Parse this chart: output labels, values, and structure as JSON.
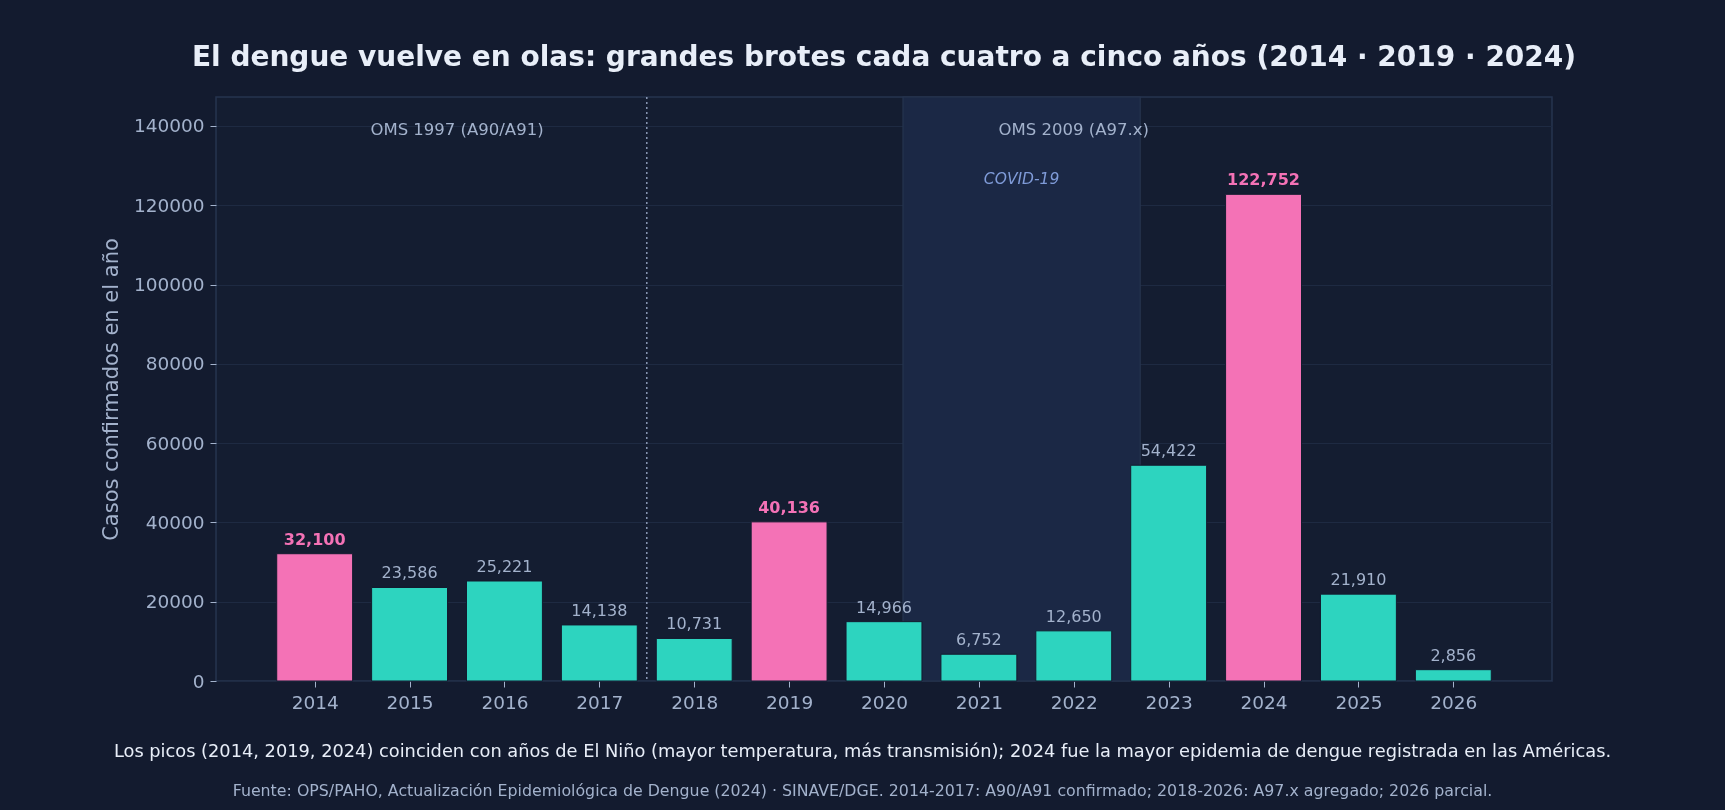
{
  "chart_data": {
    "type": "bar",
    "title": "El dengue vuelve en olas: grandes brotes cada cuatro a cinco años (2014 · 2019 · 2024)",
    "ylabel": "Casos confirmados en el año",
    "x": [
      2014,
      2015,
      2016,
      2017,
      2018,
      2019,
      2020,
      2021,
      2022,
      2023,
      2024,
      2025,
      2026
    ],
    "values": [
      32100,
      23586,
      25221,
      14138,
      10731,
      40136,
      14966,
      6752,
      12650,
      54422,
      122752,
      21910,
      2856
    ],
    "value_labels": [
      "32,100",
      "23,586",
      "25,221",
      "14,138",
      "10,731",
      "40,136",
      "14,966",
      "6,752",
      "12,650",
      "54,422",
      "122,752",
      "21,910",
      "2,856"
    ],
    "colors": [
      "#f472b6",
      "#2dd4bf",
      "#2dd4bf",
      "#2dd4bf",
      "#2dd4bf",
      "#f472b6",
      "#2dd4bf",
      "#2dd4bf",
      "#2dd4bf",
      "#2dd4bf",
      "#f472b6",
      "#2dd4bf",
      "#2dd4bf"
    ],
    "xlim": [
      2012.96,
      2027.04
    ],
    "xticks": [
      2014,
      2015,
      2016,
      2017,
      2018,
      2019,
      2020,
      2021,
      2022,
      2023,
      2024,
      2025,
      2026
    ],
    "ylim": [
      0,
      147300
    ],
    "yticks": [
      0,
      20000,
      40000,
      60000,
      80000,
      100000,
      120000,
      140000
    ],
    "grid": "y",
    "ref_lines": [
      {
        "axis": "x",
        "value": 2017.5,
        "line_style": "dotted",
        "color": "#8a98b4"
      }
    ],
    "bands": [
      {
        "axis": "x",
        "from": 2020.2,
        "to": 2022.7,
        "label": "COVID-19",
        "color": "#1b2845"
      }
    ],
    "annotations": [
      "OMS 1997 (A90/A91)",
      "OMS 2009 (A97.x)",
      "Los picos (2014, 2019, 2024) coinciden con años de El Niño (mayor temperatura, más transmisión); 2024 fue la mayor epidemia de dengue registrada en las Américas.",
      "Fuente: OPS/PAHO, Actualización Epidemiológica de Dengue (2024) · SINAVE/DGE. 2014-2017: A90/A91 confirmado; 2018-2026: A97.x agregado; 2026 parcial."
    ]
  }
}
